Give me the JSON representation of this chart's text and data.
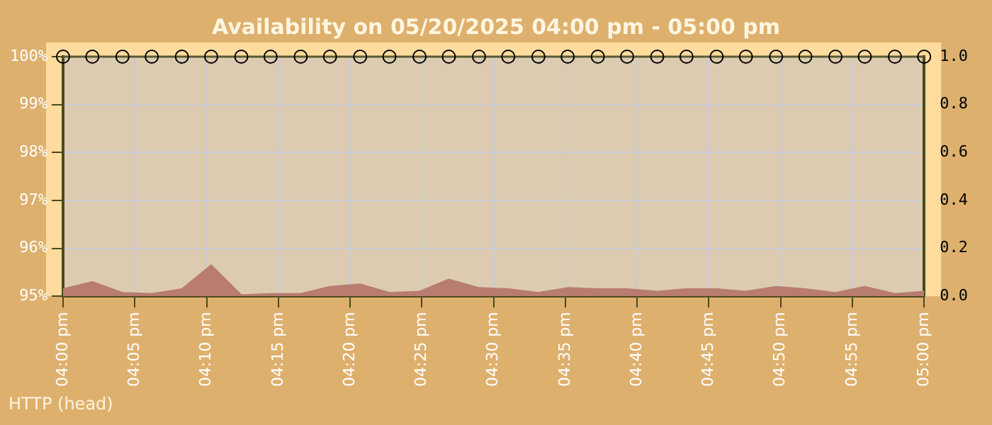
{
  "chart_data": {
    "type": "line",
    "title": "Availability on 05/20/2025 04:00 pm - 05:00 pm",
    "annotations": [
      "HTTP (head)"
    ],
    "x": [
      16,
      16.034,
      16.069,
      16.103,
      16.138,
      16.172,
      16.207,
      16.241,
      16.276,
      16.31,
      16.345,
      16.379,
      16.414,
      16.448,
      16.483,
      16.517,
      16.552,
      16.586,
      16.621,
      16.655,
      16.69,
      16.724,
      16.759,
      16.793,
      16.828,
      16.862,
      16.897,
      16.931,
      16.966,
      17
    ],
    "series": [
      {
        "type": "area",
        "axis": "y2",
        "color": "#b87c70",
        "values": [
          0.03,
          0.06,
          0.015,
          0.01,
          0.03,
          0.13,
          0.005,
          0.01,
          0.01,
          0.04,
          0.05,
          0.015,
          0.02,
          0.07,
          0.035,
          0.03,
          0.015,
          0.035,
          0.03,
          0.03,
          0.02,
          0.03,
          0.03,
          0.02,
          0.04,
          0.03,
          0.015,
          0.04,
          0.01,
          0.02
        ]
      },
      {
        "color": "#5a5a30",
        "marker": "circle",
        "values": [
          100,
          100,
          100,
          100,
          100,
          100,
          100,
          100,
          100,
          100,
          100,
          100,
          100,
          100,
          100,
          100,
          100,
          100,
          100,
          100,
          100,
          100,
          100,
          100,
          100,
          100,
          100,
          100,
          100,
          100
        ]
      }
    ],
    "xlim": [
      16,
      17
    ],
    "xticks": [
      {
        "value": 16,
        "label": "04:00 pm"
      },
      {
        "value": 16.0833,
        "label": "04:05 pm"
      },
      {
        "value": 16.1667,
        "label": "04:10 pm"
      },
      {
        "value": 16.25,
        "label": "04:15 pm"
      },
      {
        "value": 16.3333,
        "label": "04:20 pm"
      },
      {
        "value": 16.4167,
        "label": "04:25 pm"
      },
      {
        "value": 16.5,
        "label": "04:30 pm"
      },
      {
        "value": 16.5833,
        "label": "04:35 pm"
      },
      {
        "value": 16.6667,
        "label": "04:40 pm"
      },
      {
        "value": 16.75,
        "label": "04:45 pm"
      },
      {
        "value": 16.8333,
        "label": "04:50 pm"
      },
      {
        "value": 16.9167,
        "label": "04:55 pm"
      },
      {
        "value": 17,
        "label": "05:00 pm"
      }
    ],
    "ylim": [
      95,
      100
    ],
    "yticks": [
      {
        "value": 95,
        "label": "95%"
      },
      {
        "value": 96,
        "label": "96%"
      },
      {
        "value": 97,
        "label": "97%"
      },
      {
        "value": 98,
        "label": "98%"
      },
      {
        "value": 99,
        "label": "99%"
      },
      {
        "value": 100,
        "label": "100%"
      }
    ],
    "y2lim": [
      0,
      1
    ],
    "y2ticks": [
      {
        "value": 0,
        "label": "0.0"
      },
      {
        "value": 0.2,
        "label": "0.2"
      },
      {
        "value": 0.4,
        "label": "0.4"
      },
      {
        "value": 0.6,
        "label": "0.6"
      },
      {
        "value": 0.8,
        "label": "0.8"
      },
      {
        "value": 1,
        "label": "1.0"
      }
    ],
    "grid": true,
    "legend": false
  }
}
